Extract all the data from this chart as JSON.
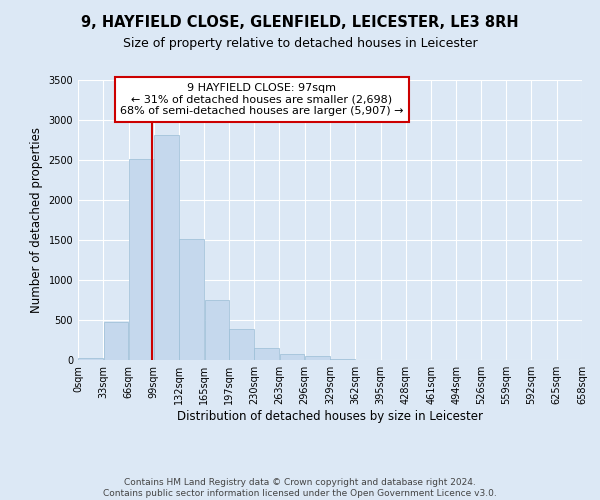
{
  "title": "9, HAYFIELD CLOSE, GLENFIELD, LEICESTER, LE3 8RH",
  "subtitle": "Size of property relative to detached houses in Leicester",
  "bar_bins": [
    0,
    33,
    66,
    99,
    132,
    165,
    197,
    230,
    263,
    296,
    329,
    362,
    395,
    428,
    461,
    494,
    526,
    559,
    592,
    625,
    658
  ],
  "bar_heights": [
    20,
    480,
    2510,
    2810,
    1510,
    750,
    390,
    150,
    80,
    50,
    10,
    0,
    0,
    0,
    0,
    0,
    0,
    0,
    0,
    0
  ],
  "bar_color": "#c5d8ed",
  "bar_edgecolor": "#9abdd6",
  "property_line_x": 97,
  "property_line_color": "#cc0000",
  "annotation_title": "9 HAYFIELD CLOSE: 97sqm",
  "annotation_line1": "← 31% of detached houses are smaller (2,698)",
  "annotation_line2": "68% of semi-detached houses are larger (5,907) →",
  "annotation_box_edgecolor": "#cc0000",
  "xlabel": "Distribution of detached houses by size in Leicester",
  "ylabel": "Number of detached properties",
  "ylim": [
    0,
    3500
  ],
  "xlim": [
    0,
    658
  ],
  "xtick_labels": [
    "0sqm",
    "33sqm",
    "66sqm",
    "99sqm",
    "132sqm",
    "165sqm",
    "197sqm",
    "230sqm",
    "263sqm",
    "296sqm",
    "329sqm",
    "362sqm",
    "395sqm",
    "428sqm",
    "461sqm",
    "494sqm",
    "526sqm",
    "559sqm",
    "592sqm",
    "625sqm",
    "658sqm"
  ],
  "xtick_positions": [
    0,
    33,
    66,
    99,
    132,
    165,
    197,
    230,
    263,
    296,
    329,
    362,
    395,
    428,
    461,
    494,
    526,
    559,
    592,
    625,
    658
  ],
  "ytick_positions": [
    0,
    500,
    1000,
    1500,
    2000,
    2500,
    3000,
    3500
  ],
  "footer_line1": "Contains HM Land Registry data © Crown copyright and database right 2024.",
  "footer_line2": "Contains public sector information licensed under the Open Government Licence v3.0.",
  "background_color": "#dce8f5",
  "plot_bg_color": "#dce8f5",
  "grid_color": "#ffffff",
  "title_fontsize": 10.5,
  "subtitle_fontsize": 9,
  "axis_label_fontsize": 8.5,
  "tick_fontsize": 7,
  "annotation_fontsize": 8,
  "footer_fontsize": 6.5
}
